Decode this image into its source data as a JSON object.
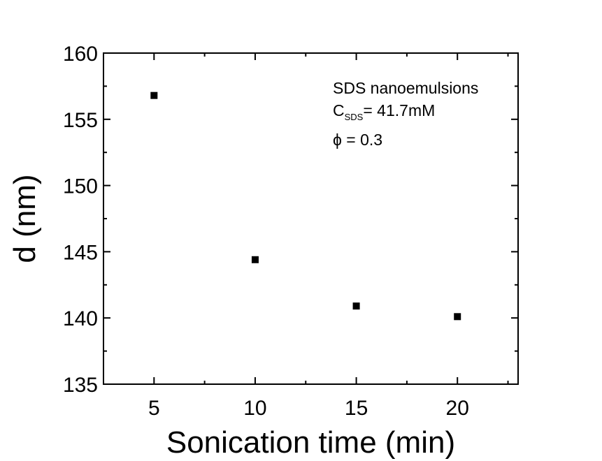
{
  "chart_data": {
    "type": "scatter",
    "xlabel": "Sonication time (min)",
    "ylabel": "d (nm)",
    "xlim": [
      2.5,
      23
    ],
    "ylim": [
      135,
      160
    ],
    "x_ticks": [
      5,
      10,
      15,
      20
    ],
    "x_tick_labels": [
      "5",
      "10",
      "15",
      "20"
    ],
    "y_ticks": [
      135,
      140,
      145,
      150,
      155,
      160
    ],
    "y_tick_labels": [
      "135",
      "140",
      "145",
      "150",
      "155",
      "160"
    ],
    "grid": false,
    "marker": "square",
    "marker_color": "#000000",
    "series": [
      {
        "x": [
          5,
          10,
          15,
          20
        ],
        "y": [
          156.8,
          144.4,
          140.9,
          140.1
        ]
      }
    ],
    "annotations": {
      "line1": "SDS nanoemulsions",
      "line2_main": "C",
      "line2_sub": "SDS",
      "line2_rest": "= 41.7mM",
      "line3_symbol": "ϕ",
      "line3_rest": " = 0.3"
    }
  }
}
